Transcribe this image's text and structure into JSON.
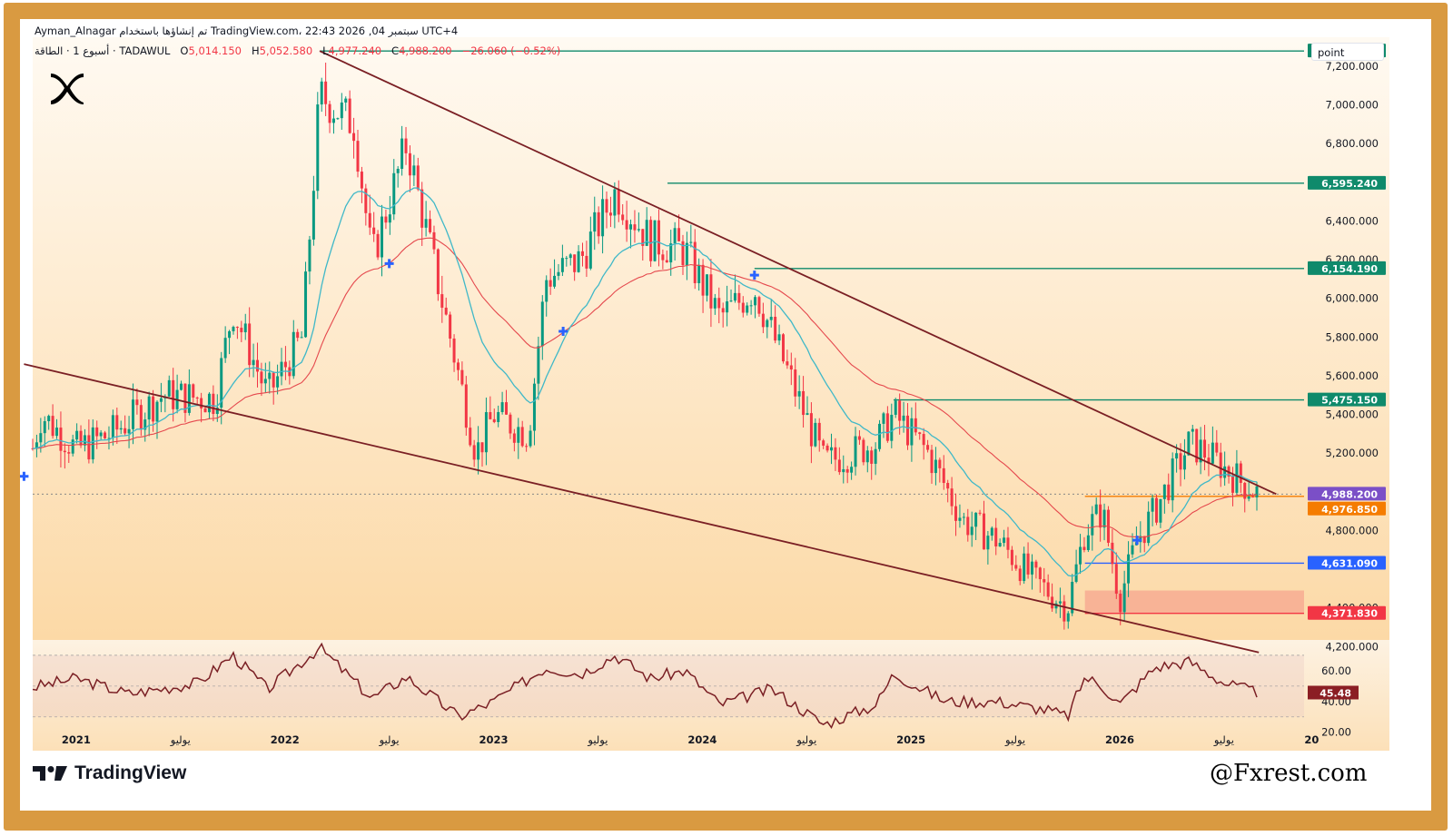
{
  "header": {
    "line1": "Ayman_Alnagar تم إنشاؤها باستخدام TradingView.com، 22:43 2026 ,04 سبتمبر UTC+4",
    "symbol": "أسبوع 1 · الطاقة · TADAWUL",
    "open_label": "O",
    "open": "5,014.150",
    "high_label": "H",
    "high": "5,052.580",
    "low_label": "L",
    "low": "4,977.240",
    "close_label": "C",
    "close": "4,988.200",
    "change": "−26.060 (−0.52%)"
  },
  "toolbar": {
    "point_button": "point"
  },
  "brand": {
    "logo_name": "x-logo",
    "tv_name": "TradingView",
    "watermark": "@Fxrest.com"
  },
  "colors": {
    "bull": "#089981",
    "bear": "#f23645",
    "ema_fast": "#3fb8c8",
    "ema_slow": "#e5484d",
    "trendline": "#7a1f24",
    "level_green": "#0f8a6b",
    "level_blue": "#2962ff",
    "level_red": "#f23645",
    "level_orange": "#f57c00",
    "current": "#7b4fc7",
    "rsi_line": "#7a1f24"
  },
  "chart_data": {
    "type": "candlestick",
    "interval": "1W",
    "y_range": [
      4150,
      7350
    ],
    "y_ticks": [
      "4,200.000",
      "4,400.000",
      "4,800.000",
      "5,200.000",
      "5,400.000",
      "5,600.000",
      "5,800.000",
      "6,000.000",
      "6,200.000",
      "6,400.000",
      "6,800.000",
      "7,000.000",
      "7,200.000"
    ],
    "x_ticks": [
      "2021",
      "يوليو",
      "2022",
      "يوليو",
      "2023",
      "يوليو",
      "2024",
      "يوليو",
      "2025",
      "يوليو",
      "2026",
      "يوليو",
      "20"
    ],
    "price_levels": [
      {
        "value": 7278.96,
        "label": "7,278.960",
        "kind": "resistance"
      },
      {
        "value": 6595.24,
        "label": "6,595.240",
        "kind": "resistance"
      },
      {
        "value": 6154.19,
        "label": "6,154.190",
        "kind": "resistance"
      },
      {
        "value": 5475.15,
        "label": "5,475.150",
        "kind": "resistance"
      },
      {
        "value": 4988.2,
        "label": "4,988.200",
        "kind": "current"
      },
      {
        "value": 4976.85,
        "label": "4,976.850",
        "kind": "support"
      },
      {
        "value": 4631.09,
        "label": "4,631.090",
        "kind": "support"
      },
      {
        "value": 4371.83,
        "label": "4,371.830",
        "kind": "support"
      }
    ],
    "support_zone": [
      4371.83,
      4490
    ],
    "upper_trendline": {
      "from": [
        "2022-03",
        7278.96
      ],
      "to": [
        "2026-10",
        4988.2
      ]
    },
    "lower_trendline": {
      "from": [
        "2020-10",
        5660
      ],
      "to": [
        "2026-09",
        4170
      ]
    },
    "close_anchors": [
      [
        "2020-10",
        5050
      ],
      [
        "2020-11",
        5400
      ],
      [
        "2021-01",
        5220
      ],
      [
        "2021-03",
        5300
      ],
      [
        "2021-06",
        5500
      ],
      [
        "2021-09",
        5480
      ],
      [
        "2021-10",
        5950
      ],
      [
        "2021-12",
        5500
      ],
      [
        "2022-02",
        5800
      ],
      [
        "2022-03",
        7050
      ],
      [
        "2022-05",
        6900
      ],
      [
        "2022-06",
        6200
      ],
      [
        "2022-08",
        6800
      ],
      [
        "2022-10",
        6000
      ],
      [
        "2022-12",
        5200
      ],
      [
        "2023-01",
        5400
      ],
      [
        "2023-03",
        5300
      ],
      [
        "2023-04",
        6100
      ],
      [
        "2023-06",
        6200
      ],
      [
        "2023-08",
        6550
      ],
      [
        "2023-10",
        6300
      ],
      [
        "2023-12",
        6250
      ],
      [
        "2024-02",
        5900
      ],
      [
        "2024-04",
        6050
      ],
      [
        "2024-06",
        5600
      ],
      [
        "2024-08",
        5150
      ],
      [
        "2024-11",
        5250
      ],
      [
        "2024-12",
        5400
      ],
      [
        "2025-02",
        5200
      ],
      [
        "2025-04",
        4850
      ],
      [
        "2025-06",
        4750
      ],
      [
        "2025-08",
        4550
      ],
      [
        "2025-10",
        4400
      ],
      [
        "2025-11",
        4800
      ],
      [
        "2025-12",
        4900
      ],
      [
        "2026-01",
        4450
      ],
      [
        "2026-02",
        4750
      ],
      [
        "2026-03",
        4900
      ],
      [
        "2026-05",
        5250
      ],
      [
        "2026-06",
        5200
      ],
      [
        "2026-08",
        5050
      ],
      [
        "2026-09",
        4988.2
      ]
    ],
    "rsi": {
      "value": 45.48,
      "label": "45.48",
      "levels": [
        30,
        50,
        70
      ],
      "y_ticks": [
        "60.00",
        "40.00",
        "20.00"
      ],
      "anchors": [
        [
          "2020-10",
          48
        ],
        [
          "2021-01",
          55
        ],
        [
          "2021-04",
          45
        ],
        [
          "2021-08",
          52
        ],
        [
          "2021-10",
          70
        ],
        [
          "2021-12",
          48
        ],
        [
          "2022-03",
          75
        ],
        [
          "2022-06",
          42
        ],
        [
          "2022-08",
          56
        ],
        [
          "2022-11",
          30
        ],
        [
          "2023-01",
          40
        ],
        [
          "2023-04",
          62
        ],
        [
          "2023-06",
          58
        ],
        [
          "2023-08",
          70
        ],
        [
          "2023-10",
          55
        ],
        [
          "2023-12",
          60
        ],
        [
          "2024-02",
          38
        ],
        [
          "2024-05",
          48
        ],
        [
          "2024-08",
          25
        ],
        [
          "2024-11",
          38
        ],
        [
          "2024-12",
          58
        ],
        [
          "2025-03",
          40
        ],
        [
          "2025-06",
          40
        ],
        [
          "2025-09",
          34
        ],
        [
          "2025-10",
          30
        ],
        [
          "2025-11",
          56
        ],
        [
          "2025-12",
          50
        ],
        [
          "2026-01",
          38
        ],
        [
          "2026-03",
          62
        ],
        [
          "2026-05",
          66
        ],
        [
          "2026-07",
          52
        ],
        [
          "2026-09",
          45.48
        ]
      ]
    }
  }
}
